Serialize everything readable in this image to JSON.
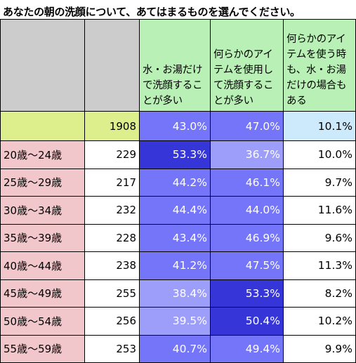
{
  "title": "あなたの朝の洗顔について、あてはまるものを選んでください。",
  "headers": [
    "",
    "",
    "水・お湯だけで洗顔することが多い",
    "何らかのアイテムを使用して洗顔することが多い",
    "何らかのアイテムを使う時も、水・お湯だけの場合もある"
  ],
  "total": {
    "label": "",
    "n": "1908",
    "water": "43.0%",
    "item": "47.0%",
    "both": "10.1%"
  },
  "rows": [
    {
      "label": "20歳〜24歳",
      "n": "229",
      "water": "53.3%",
      "item": "36.7%",
      "both": "10.0%"
    },
    {
      "label": "25歳〜29歳",
      "n": "217",
      "water": "44.2%",
      "item": "46.1%",
      "both": "9.7%"
    },
    {
      "label": "30歳〜34歳",
      "n": "232",
      "water": "44.4%",
      "item": "44.0%",
      "both": "11.6%"
    },
    {
      "label": "35歳〜39歳",
      "n": "228",
      "water": "43.4%",
      "item": "46.9%",
      "both": "9.6%"
    },
    {
      "label": "40歳〜44歳",
      "n": "238",
      "water": "41.2%",
      "item": "47.5%",
      "both": "11.3%"
    },
    {
      "label": "45歳〜49歳",
      "n": "255",
      "water": "38.4%",
      "item": "53.3%",
      "both": "8.2%"
    },
    {
      "label": "50歳〜54歳",
      "n": "256",
      "water": "39.5%",
      "item": "50.4%",
      "both": "10.2%"
    },
    {
      "label": "55歳〜59歳",
      "n": "253",
      "water": "40.7%",
      "item": "49.4%",
      "both": "9.9%"
    }
  ],
  "colors": {
    "header_gray": "#cccccc",
    "header_green": "#b9f0b5",
    "total_yellow": "#dcef8c",
    "row_label_pink": "#f2c7cb",
    "both_lightblue": "#cdeafc",
    "heat_light": "#9d9dfa",
    "heat_mid": "#7575fa",
    "heat_dark": "#3636d8"
  }
}
